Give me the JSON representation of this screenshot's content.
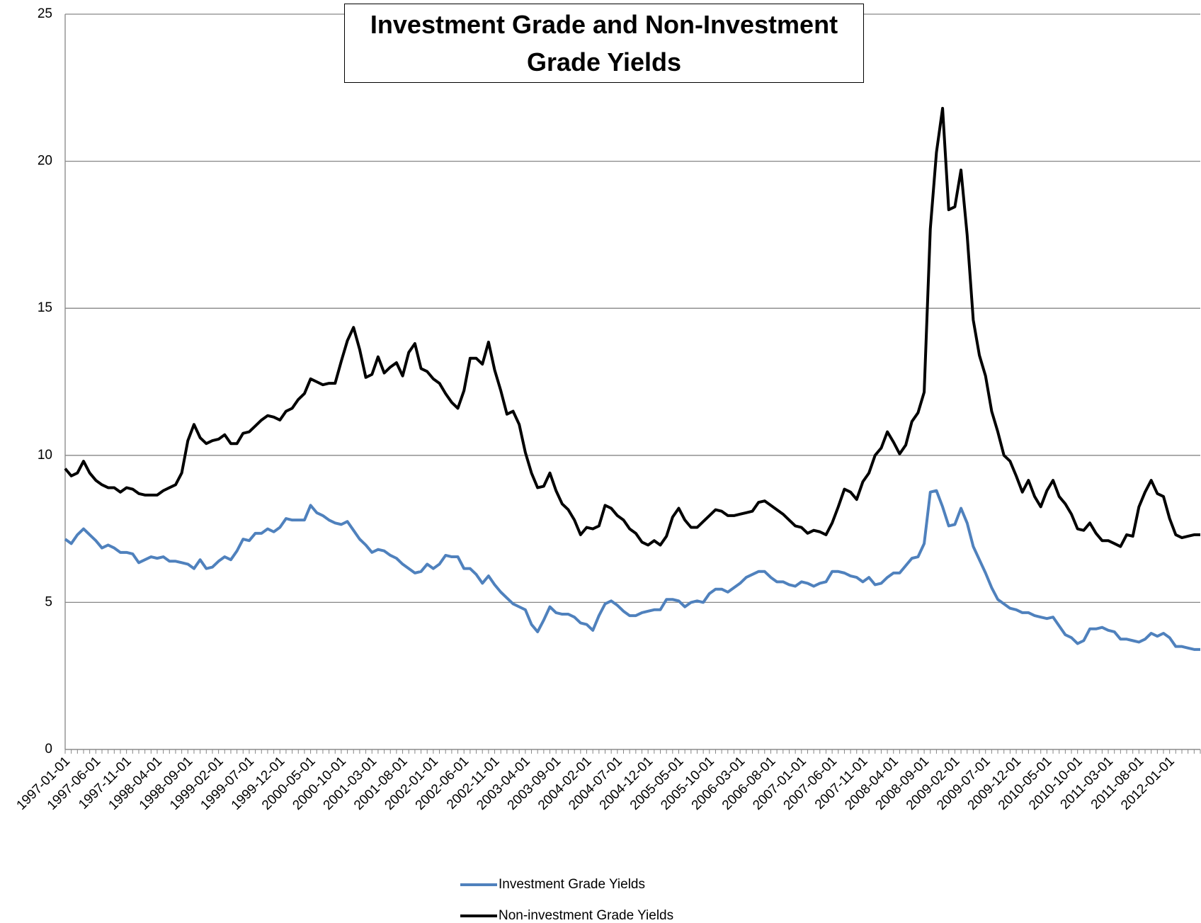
{
  "chart_data": {
    "type": "line",
    "title": "Investment Grade and Non-Investment Grade Yields",
    "categories": [
      "1997-01-01",
      null,
      null,
      null,
      null,
      "1997-06-01",
      null,
      null,
      null,
      null,
      "1997-11-01",
      null,
      null,
      null,
      null,
      "1998-04-01",
      null,
      null,
      null,
      null,
      "1998-09-01",
      null,
      null,
      null,
      null,
      "1999-02-01",
      null,
      null,
      null,
      null,
      "1999-07-01",
      null,
      null,
      null,
      null,
      "1999-12-01",
      null,
      null,
      null,
      null,
      "2000-05-01",
      null,
      null,
      null,
      null,
      "2000-10-01",
      null,
      null,
      null,
      null,
      "2001-03-01",
      null,
      null,
      null,
      null,
      "2001-08-01",
      null,
      null,
      null,
      null,
      "2002-01-01",
      null,
      null,
      null,
      null,
      "2002-06-01",
      null,
      null,
      null,
      null,
      "2002-11-01",
      null,
      null,
      null,
      null,
      "2003-04-01",
      null,
      null,
      null,
      null,
      "2003-09-01",
      null,
      null,
      null,
      null,
      "2004-02-01",
      null,
      null,
      null,
      null,
      "2004-07-01",
      null,
      null,
      null,
      null,
      "2004-12-01",
      null,
      null,
      null,
      null,
      "2005-05-01",
      null,
      null,
      null,
      null,
      "2005-10-01",
      null,
      null,
      null,
      null,
      "2006-03-01",
      null,
      null,
      null,
      null,
      "2006-08-01",
      null,
      null,
      null,
      null,
      "2007-01-01",
      null,
      null,
      null,
      null,
      "2007-06-01",
      null,
      null,
      null,
      null,
      "2007-11-01",
      null,
      null,
      null,
      null,
      "2008-04-01",
      null,
      null,
      null,
      null,
      "2008-09-01",
      null,
      null,
      null,
      null,
      "2009-02-01",
      null,
      null,
      null,
      null,
      "2009-07-01",
      null,
      null,
      null,
      null,
      "2009-12-01",
      null,
      null,
      null,
      null,
      "2010-05-01",
      null,
      null,
      null,
      null,
      "2010-10-01",
      null,
      null,
      null,
      null,
      "2011-03-01",
      null,
      null,
      null,
      null,
      "2011-08-01",
      null,
      null,
      null,
      null,
      "2012-01-01",
      null,
      null,
      null,
      null,
      null
    ],
    "series": [
      {
        "name": "Investment Grade Yields",
        "color": "#4f81bd",
        "values": [
          7.15,
          7.0,
          7.3,
          7.5,
          7.3,
          7.1,
          6.85,
          6.95,
          6.85,
          6.7,
          6.7,
          6.65,
          6.35,
          6.45,
          6.55,
          6.5,
          6.55,
          6.4,
          6.4,
          6.35,
          6.3,
          6.15,
          6.45,
          6.15,
          6.2,
          6.4,
          6.55,
          6.45,
          6.75,
          7.15,
          7.1,
          7.35,
          7.35,
          7.5,
          7.4,
          7.55,
          7.85,
          7.8,
          7.8,
          7.8,
          8.3,
          8.05,
          7.95,
          7.8,
          7.7,
          7.65,
          7.75,
          7.45,
          7.15,
          6.95,
          6.7,
          6.8,
          6.75,
          6.6,
          6.5,
          6.3,
          6.15,
          6.0,
          6.05,
          6.3,
          6.15,
          6.3,
          6.6,
          6.55,
          6.55,
          6.15,
          6.15,
          5.95,
          5.65,
          5.9,
          5.6,
          5.35,
          5.15,
          4.95,
          4.85,
          4.75,
          4.25,
          4.0,
          4.4,
          4.85,
          4.65,
          4.6,
          4.6,
          4.5,
          4.3,
          4.25,
          4.05,
          4.55,
          4.95,
          5.05,
          4.9,
          4.7,
          4.55,
          4.55,
          4.65,
          4.7,
          4.75,
          4.75,
          5.1,
          5.1,
          5.05,
          4.85,
          5.0,
          5.05,
          5.0,
          5.3,
          5.45,
          5.45,
          5.35,
          5.5,
          5.65,
          5.85,
          5.95,
          6.05,
          6.05,
          5.85,
          5.7,
          5.7,
          5.6,
          5.55,
          5.7,
          5.65,
          5.55,
          5.65,
          5.7,
          6.05,
          6.05,
          6.0,
          5.9,
          5.85,
          5.7,
          5.85,
          5.6,
          5.65,
          5.85,
          6.0,
          6.0,
          6.25,
          6.5,
          6.55,
          7.0,
          8.75,
          8.8,
          8.25,
          7.6,
          7.65,
          8.2,
          7.7,
          6.9,
          6.45,
          6.0,
          5.5,
          5.1,
          4.95,
          4.8,
          4.75,
          4.65,
          4.65,
          4.55,
          4.5,
          4.45,
          4.5,
          4.2,
          3.9,
          3.8,
          3.6,
          3.7,
          4.1,
          4.1,
          4.15,
          4.05,
          4.0,
          3.75,
          3.75,
          3.7,
          3.65,
          3.75,
          3.95,
          3.85,
          3.95,
          3.8,
          3.5,
          3.5,
          3.45,
          3.4,
          3.4
        ]
      },
      {
        "name": "Non-investment Grade Yields",
        "color": "#000000",
        "values": [
          9.55,
          9.3,
          9.4,
          9.8,
          9.4,
          9.15,
          9.0,
          8.9,
          8.9,
          8.75,
          8.9,
          8.85,
          8.7,
          8.65,
          8.65,
          8.65,
          8.8,
          8.9,
          9.0,
          9.4,
          10.5,
          11.05,
          10.6,
          10.4,
          10.5,
          10.55,
          10.7,
          10.4,
          10.4,
          10.75,
          10.8,
          11.0,
          11.2,
          11.35,
          11.3,
          11.2,
          11.5,
          11.6,
          11.9,
          12.1,
          12.6,
          12.5,
          12.4,
          12.45,
          12.45,
          13.2,
          13.9,
          14.35,
          13.6,
          12.65,
          12.75,
          13.35,
          12.8,
          13.0,
          13.15,
          12.7,
          13.5,
          13.8,
          12.95,
          12.85,
          12.6,
          12.45,
          12.1,
          11.8,
          11.6,
          12.2,
          13.3,
          13.3,
          13.1,
          13.85,
          12.9,
          12.2,
          11.4,
          11.5,
          11.05,
          10.1,
          9.4,
          8.9,
          8.95,
          9.4,
          8.8,
          8.35,
          8.15,
          7.8,
          7.3,
          7.55,
          7.5,
          7.6,
          8.3,
          8.2,
          7.95,
          7.8,
          7.5,
          7.35,
          7.05,
          6.95,
          7.1,
          6.95,
          7.25,
          7.9,
          8.2,
          7.8,
          7.55,
          7.55,
          7.75,
          7.95,
          8.15,
          8.1,
          7.95,
          7.95,
          8.0,
          8.05,
          8.1,
          8.4,
          8.45,
          8.3,
          8.15,
          8.0,
          7.8,
          7.6,
          7.55,
          7.35,
          7.45,
          7.4,
          7.3,
          7.7,
          8.25,
          8.85,
          8.75,
          8.5,
          9.1,
          9.4,
          10.0,
          10.25,
          10.8,
          10.45,
          10.05,
          10.35,
          11.15,
          11.45,
          12.15,
          17.7,
          20.3,
          21.8,
          18.35,
          18.45,
          19.7,
          17.5,
          14.6,
          13.4,
          12.7,
          11.5,
          10.8,
          10.0,
          9.8,
          9.3,
          8.75,
          9.15,
          8.6,
          8.25,
          8.8,
          9.15,
          8.6,
          8.35,
          8.0,
          7.5,
          7.45,
          7.7,
          7.35,
          7.1,
          7.1,
          7.0,
          6.9,
          7.3,
          7.25,
          8.25,
          8.75,
          9.15,
          8.7,
          8.6,
          7.85,
          7.3,
          7.2,
          7.25,
          7.3,
          7.3
        ]
      }
    ],
    "ylim": [
      0,
      25
    ],
    "yticks": [
      0,
      5,
      10,
      15,
      20,
      25
    ],
    "grid": true
  }
}
